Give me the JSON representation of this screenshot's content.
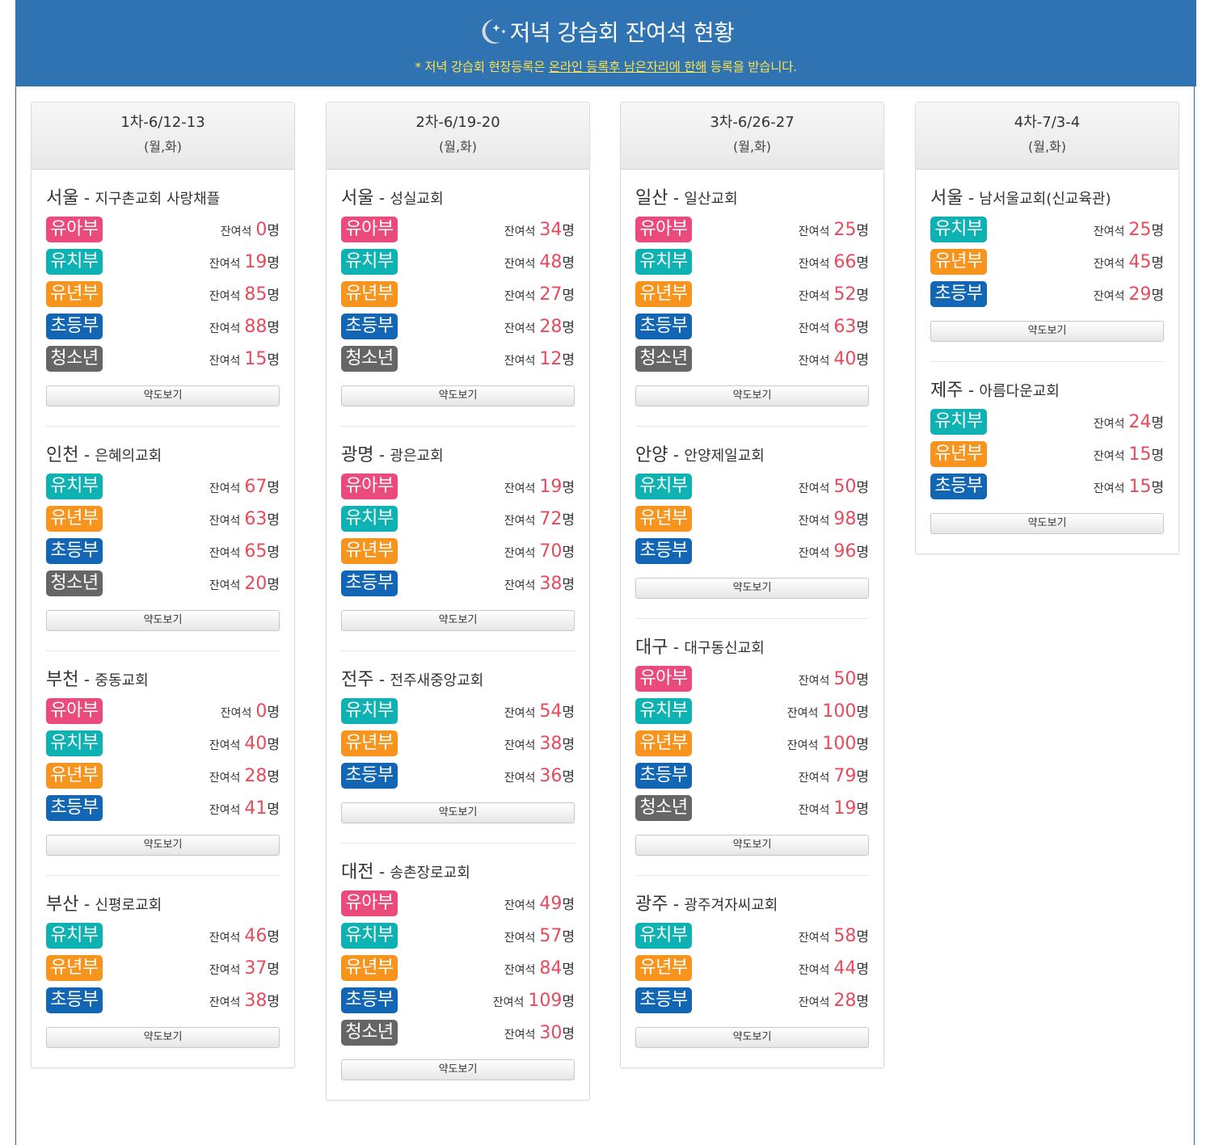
{
  "header": {
    "title": "저녁 강습회 잔여석 현황",
    "notice_prefix": "* 저녁 강습회 현장등록은 ",
    "notice_underlined": "온라인 등록후 남은자리에 한해",
    "notice_suffix": " 등록을 받습니다."
  },
  "labels": {
    "seat": "잔여석",
    "unit": "명",
    "dash": "-",
    "map_button": "약도보기"
  },
  "colors": {
    "banner": "#2f73b2",
    "notice": "#ffe34d",
    "number": "#e84a5c",
    "유아부": "#ea4a7c",
    "유치부": "#0fb2b2",
    "유년부": "#f7941d",
    "초등부": "#1266b4",
    "청소년": "#666666"
  },
  "sessions": [
    {
      "date": "1차-6/12-13",
      "days": "(월,화)",
      "churches": [
        {
          "city": "서울",
          "name": "지구촌교회 사랑채플",
          "depts": [
            {
              "name": "유아부",
              "seats": "0"
            },
            {
              "name": "유치부",
              "seats": "19"
            },
            {
              "name": "유년부",
              "seats": "85"
            },
            {
              "name": "초등부",
              "seats": "88"
            },
            {
              "name": "청소년",
              "seats": "15"
            }
          ]
        },
        {
          "city": "인천",
          "name": "은혜의교회",
          "depts": [
            {
              "name": "유치부",
              "seats": "67"
            },
            {
              "name": "유년부",
              "seats": "63"
            },
            {
              "name": "초등부",
              "seats": "65"
            },
            {
              "name": "청소년",
              "seats": "20"
            }
          ]
        },
        {
          "city": "부천",
          "name": "중동교회",
          "depts": [
            {
              "name": "유아부",
              "seats": "0"
            },
            {
              "name": "유치부",
              "seats": "40"
            },
            {
              "name": "유년부",
              "seats": "28"
            },
            {
              "name": "초등부",
              "seats": "41"
            }
          ]
        },
        {
          "city": "부산",
          "name": "신평로교회",
          "depts": [
            {
              "name": "유치부",
              "seats": "46"
            },
            {
              "name": "유년부",
              "seats": "37"
            },
            {
              "name": "초등부",
              "seats": "38"
            }
          ]
        }
      ]
    },
    {
      "date": "2차-6/19-20",
      "days": "(월,화)",
      "churches": [
        {
          "city": "서울",
          "name": "성실교회",
          "depts": [
            {
              "name": "유아부",
              "seats": "34"
            },
            {
              "name": "유치부",
              "seats": "48"
            },
            {
              "name": "유년부",
              "seats": "27"
            },
            {
              "name": "초등부",
              "seats": "28"
            },
            {
              "name": "청소년",
              "seats": "12"
            }
          ]
        },
        {
          "city": "광명",
          "name": "광은교회",
          "depts": [
            {
              "name": "유아부",
              "seats": "19"
            },
            {
              "name": "유치부",
              "seats": "72"
            },
            {
              "name": "유년부",
              "seats": "70"
            },
            {
              "name": "초등부",
              "seats": "38"
            }
          ]
        },
        {
          "city": "전주",
          "name": "전주새중앙교회",
          "depts": [
            {
              "name": "유치부",
              "seats": "54"
            },
            {
              "name": "유년부",
              "seats": "38"
            },
            {
              "name": "초등부",
              "seats": "36"
            }
          ]
        },
        {
          "city": "대전",
          "name": "송촌장로교회",
          "depts": [
            {
              "name": "유아부",
              "seats": "49"
            },
            {
              "name": "유치부",
              "seats": "57"
            },
            {
              "name": "유년부",
              "seats": "84"
            },
            {
              "name": "초등부",
              "seats": "109"
            },
            {
              "name": "청소년",
              "seats": "30"
            }
          ]
        }
      ]
    },
    {
      "date": "3차-6/26-27",
      "days": "(월,화)",
      "churches": [
        {
          "city": "일산",
          "name": "일산교회",
          "depts": [
            {
              "name": "유아부",
              "seats": "25"
            },
            {
              "name": "유치부",
              "seats": "66"
            },
            {
              "name": "유년부",
              "seats": "52"
            },
            {
              "name": "초등부",
              "seats": "63"
            },
            {
              "name": "청소년",
              "seats": "40"
            }
          ]
        },
        {
          "city": "안양",
          "name": "안양제일교회",
          "depts": [
            {
              "name": "유치부",
              "seats": "50"
            },
            {
              "name": "유년부",
              "seats": "98"
            },
            {
              "name": "초등부",
              "seats": "96"
            }
          ]
        },
        {
          "city": "대구",
          "name": "대구동신교회",
          "depts": [
            {
              "name": "유아부",
              "seats": "50"
            },
            {
              "name": "유치부",
              "seats": "100"
            },
            {
              "name": "유년부",
              "seats": "100"
            },
            {
              "name": "초등부",
              "seats": "79"
            },
            {
              "name": "청소년",
              "seats": "19"
            }
          ]
        },
        {
          "city": "광주",
          "name": "광주겨자씨교회",
          "depts": [
            {
              "name": "유치부",
              "seats": "58"
            },
            {
              "name": "유년부",
              "seats": "44"
            },
            {
              "name": "초등부",
              "seats": "28"
            }
          ]
        }
      ]
    },
    {
      "date": "4차-7/3-4",
      "days": "(월,화)",
      "churches": [
        {
          "city": "서울",
          "name": "남서울교회(신교육관)",
          "depts": [
            {
              "name": "유치부",
              "seats": "25"
            },
            {
              "name": "유년부",
              "seats": "45"
            },
            {
              "name": "초등부",
              "seats": "29"
            }
          ]
        },
        {
          "city": "제주",
          "name": "아름다운교회",
          "depts": [
            {
              "name": "유치부",
              "seats": "24"
            },
            {
              "name": "유년부",
              "seats": "15"
            },
            {
              "name": "초등부",
              "seats": "15"
            }
          ]
        }
      ]
    }
  ]
}
